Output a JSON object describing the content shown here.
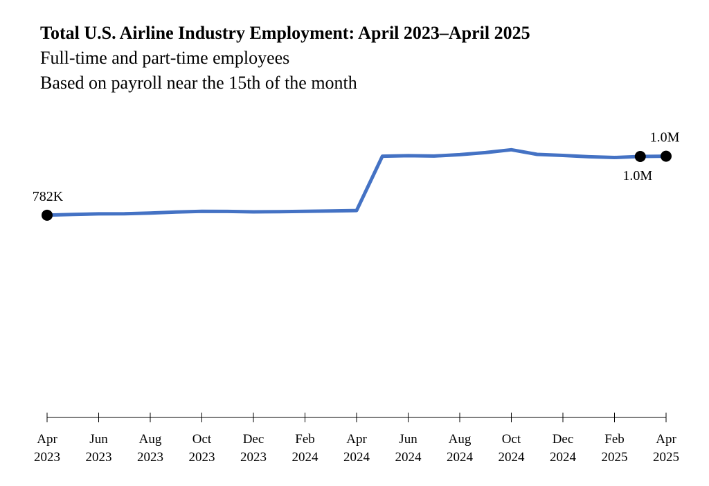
{
  "title": "Total U.S. Airline Industry Employment: April 2023–April 2025",
  "subtitle_lines": [
    "Full-time and part-time employees",
    "Based on payroll near the 15th of the month"
  ],
  "line_color": "#4472c4",
  "chart_data": {
    "type": "line",
    "title": "Total U.S. Airline Industry Employment: April 2023–April 2025",
    "xlabel": "",
    "ylabel": "",
    "grid": false,
    "legend": "none",
    "ylim": [
      0,
      1100000
    ],
    "x": [
      "2023-04",
      "2023-05",
      "2023-06",
      "2023-07",
      "2023-08",
      "2023-09",
      "2023-10",
      "2023-11",
      "2023-12",
      "2024-01",
      "2024-02",
      "2024-03",
      "2024-04",
      "2024-05",
      "2024-06",
      "2024-07",
      "2024-08",
      "2024-09",
      "2024-10",
      "2024-11",
      "2024-12",
      "2025-01",
      "2025-02",
      "2025-03",
      "2025-04"
    ],
    "series": [
      {
        "values": [
          782000,
          785000,
          787000,
          787500,
          790000,
          794000,
          797000,
          796500,
          795000,
          795500,
          797000,
          798000,
          800000,
          1010000,
          1012000,
          1010500,
          1016000,
          1024000,
          1035000,
          1017000,
          1013000,
          1008000,
          1005000,
          1009000,
          1010000
        ]
      }
    ],
    "x_ticks": [
      {
        "month": "Apr",
        "year": "2023",
        "x": "2023-04"
      },
      {
        "month": "Jun",
        "year": "2023",
        "x": "2023-06"
      },
      {
        "month": "Aug",
        "year": "2023",
        "x": "2023-08"
      },
      {
        "month": "Oct",
        "year": "2023",
        "x": "2023-10"
      },
      {
        "month": "Dec",
        "year": "2023",
        "x": "2023-12"
      },
      {
        "month": "Feb",
        "year": "2024",
        "x": "2024-02"
      },
      {
        "month": "Apr",
        "year": "2024",
        "x": "2024-04"
      },
      {
        "month": "Jun",
        "year": "2024",
        "x": "2024-06"
      },
      {
        "month": "Aug",
        "year": "2024",
        "x": "2024-08"
      },
      {
        "month": "Oct",
        "year": "2024",
        "x": "2024-10"
      },
      {
        "month": "Dec",
        "year": "2024",
        "x": "2024-12"
      },
      {
        "month": "Feb",
        "year": "2025",
        "x": "2025-02"
      },
      {
        "month": "Apr",
        "year": "2025",
        "x": "2025-04"
      }
    ],
    "annotations": [
      {
        "x": "2023-04",
        "label": "782K",
        "position": "above"
      },
      {
        "x": "2025-03",
        "label": "1.0M",
        "position": "below"
      },
      {
        "x": "2025-04",
        "label": "1.0M",
        "position": "above"
      }
    ]
  }
}
